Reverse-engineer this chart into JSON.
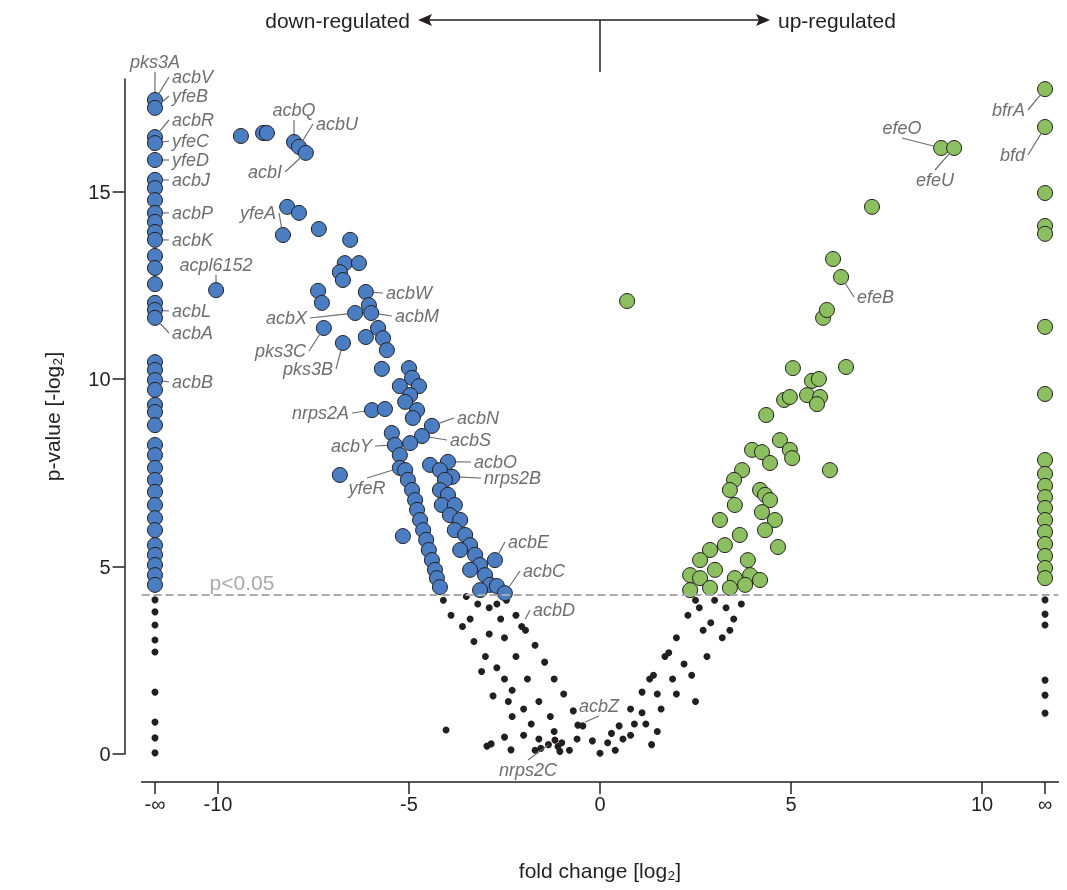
{
  "chart_data": {
    "type": "scatter",
    "xlabel": "fold change [log₂]",
    "ylabel": "p-value [-log₂]",
    "xlim": [
      -12,
      12
    ],
    "xticks": [
      {
        "value": -11.65,
        "label": "-∞"
      },
      -10,
      -5,
      0,
      5,
      10,
      {
        "value": 11.65,
        "label": "∞"
      }
    ],
    "ylim": [
      0,
      18
    ],
    "yticks": [
      0,
      5,
      10,
      15
    ],
    "grid": false,
    "marker": "circle",
    "series": [
      {
        "color": "#4a7dc1",
        "x": [
          -11.65,
          -11.65,
          -11.65,
          -11.65,
          -11.65,
          -11.65,
          -11.65,
          -11.65,
          -11.65,
          -11.65,
          -11.65,
          -11.65,
          -11.65,
          -11.65,
          -11.65,
          -11.65,
          -11.65,
          -11.65,
          -11.65,
          -11.65,
          -11.65,
          -11.65,
          -11.65,
          -11.65,
          -11.65,
          -11.65,
          -11.65,
          -11.65,
          -11.65,
          -11.65,
          -11.65,
          -11.65,
          -11.65,
          -11.65,
          -11.65,
          -11.65,
          -11.65,
          -11.65,
          -9.4,
          -8.82,
          -8.72,
          -8.01,
          -7.88,
          -7.7,
          -8.19,
          -7.88,
          -8.3,
          -7.36,
          -6.54,
          -10.05,
          -6.68,
          -6.31,
          -6.81,
          -6.73,
          -7.38,
          -7.28,
          -6.13,
          -6.05,
          -6.41,
          -5.99,
          -7.23,
          -6.73,
          -6.13,
          -5.81,
          -5.68,
          -5.58,
          -5.71,
          -5.0,
          -4.92,
          -5.24,
          -4.74,
          -4.97,
          -5.1,
          -5.97,
          -5.63,
          -4.79,
          -4.9,
          -4.4,
          -4.66,
          -5.45,
          -5.37,
          -4.97,
          -5.24,
          -6.81,
          -5.24,
          -3.98,
          -3.87,
          -5.16,
          -5.1,
          -5.03,
          -4.92,
          -4.84,
          -4.79,
          -4.71,
          -4.63,
          -4.55,
          -4.48,
          -4.4,
          -4.32,
          -4.27,
          -4.19,
          -4.45,
          -4.19,
          -4.06,
          -4.19,
          -3.98,
          -4.14,
          -3.8,
          -3.93,
          -3.66,
          -3.8,
          -3.53,
          -3.4,
          -3.66,
          -3.27,
          -3.14,
          -3.4,
          -3.01,
          -2.88,
          -3.14,
          -2.7,
          -2.75,
          -2.49
        ],
        "values": [
          17.44,
          17.23,
          16.45,
          16.29,
          15.84,
          15.31,
          15.09,
          14.77,
          14.43,
          14.19,
          13.92,
          13.71,
          13.28,
          12.96,
          12.53,
          12.03,
          11.84,
          11.63,
          10.45,
          10.24,
          9.97,
          9.71,
          9.31,
          9.12,
          8.77,
          8.24,
          7.97,
          7.63,
          7.31,
          6.99,
          6.64,
          6.29,
          5.97,
          5.57,
          5.31,
          5.04,
          4.77,
          4.51,
          16.48,
          16.56,
          16.56,
          16.32,
          16.19,
          16.03,
          14.59,
          14.43,
          13.84,
          14.0,
          13.71,
          12.37,
          13.09,
          13.09,
          12.85,
          12.64,
          12.35,
          12.03,
          12.32,
          11.97,
          11.76,
          11.76,
          11.36,
          10.96,
          11.12,
          11.36,
          11.09,
          10.77,
          10.27,
          10.29,
          10.03,
          9.81,
          9.81,
          9.57,
          9.39,
          9.17,
          9.2,
          9.17,
          8.96,
          8.75,
          8.48,
          8.56,
          8.24,
          8.29,
          7.97,
          7.44,
          7.63,
          7.79,
          7.39,
          5.81,
          7.57,
          7.31,
          7.04,
          6.77,
          6.51,
          6.24,
          5.97,
          5.71,
          5.44,
          5.17,
          4.91,
          4.69,
          4.45,
          7.71,
          7.57,
          7.31,
          7.04,
          6.91,
          6.64,
          6.64,
          6.37,
          6.24,
          5.97,
          5.84,
          5.57,
          5.44,
          5.31,
          5.04,
          4.91,
          4.77,
          4.51,
          4.37,
          4.48,
          5.17,
          4.29
        ]
      },
      {
        "color": "#8cbf5f",
        "x": [
          11.65,
          11.65,
          11.65,
          11.65,
          11.65,
          11.65,
          11.65,
          11.65,
          11.65,
          11.65,
          11.65,
          11.65,
          11.65,
          11.65,
          11.65,
          11.65,
          11.65,
          11.65,
          0.71,
          7.12,
          8.93,
          9.27,
          6.1,
          6.31,
          5.84,
          5.94,
          6.44,
          6.02,
          5.05,
          5.55,
          5.73,
          5.42,
          5.76,
          5.68,
          4.35,
          4.82,
          4.97,
          4.71,
          3.98,
          4.24,
          4.97,
          5.03,
          4.45,
          3.72,
          3.51,
          4.19,
          3.4,
          3.53,
          4.32,
          4.45,
          3.14,
          4.24,
          4.58,
          4.32,
          4.66,
          3.27,
          3.66,
          2.88,
          2.62,
          3.87,
          2.36,
          2.62,
          3.01,
          3.53,
          3.93,
          2.36,
          2.88,
          3.4,
          3.8,
          4.19
        ],
        "values": [
          17.73,
          16.72,
          14.96,
          14.08,
          13.87,
          11.39,
          9.6,
          7.84,
          7.47,
          7.15,
          6.85,
          6.56,
          6.24,
          5.92,
          5.6,
          5.28,
          4.96,
          4.69,
          12.08,
          14.59,
          16.16,
          16.16,
          13.2,
          12.72,
          11.63,
          11.84,
          10.32,
          7.57,
          10.29,
          9.95,
          10.0,
          9.57,
          9.52,
          9.33,
          9.04,
          9.44,
          9.52,
          8.37,
          8.11,
          8.05,
          8.11,
          7.89,
          7.76,
          7.57,
          7.31,
          7.04,
          7.04,
          6.64,
          6.91,
          6.77,
          6.24,
          6.45,
          6.24,
          5.97,
          5.52,
          5.57,
          5.84,
          5.44,
          5.17,
          5.17,
          4.77,
          4.69,
          4.91,
          4.69,
          4.77,
          4.37,
          4.43,
          4.43,
          4.51,
          4.64
        ]
      },
      {
        "color": "#231f20",
        "x": [
          -11.65,
          -11.65,
          -11.65,
          -11.65,
          -11.65,
          -11.65,
          -11.65,
          -11.65,
          -11.65,
          11.65,
          11.65,
          11.65,
          11.65,
          11.65,
          11.65,
          -2.45,
          -2.2,
          -1.95,
          -1.7,
          -1.45,
          -1.2,
          -0.95,
          -0.7,
          -0.45,
          -0.2,
          0,
          -4.1,
          -3.9,
          -3.6,
          -3.3,
          -3.4,
          -3.0,
          -2.7,
          -2.9,
          -2.5,
          -2.3,
          -2.4,
          -2.0,
          -2.3,
          -1.8,
          -2.0,
          -1.6,
          -1.35,
          -2.5,
          -3.1,
          -2.8,
          -3.2,
          -2.9,
          -2.6,
          -2.7,
          -3.5,
          -1.0,
          -0.8,
          -1.2,
          -1.6,
          -1.9,
          -2.2,
          -2.5,
          -1.3,
          -0.6,
          -1.55,
          -1.7,
          -1.1,
          -1.05,
          -2.05,
          -0.58,
          -1.18,
          -4.03,
          -2.96,
          -2.85,
          -2.33,
          0.2,
          0.5,
          0.8,
          1.1,
          1.4,
          1.7,
          2.0,
          2.3,
          2.5,
          0.8,
          1.2,
          1.6,
          2.0,
          2.4,
          2.8,
          3.2,
          3.5,
          3.7,
          3.3,
          2.9,
          2.6,
          3.0,
          2.2,
          1.9,
          1.5,
          1.1,
          0.6,
          1.5,
          1.35,
          2.5,
          0.9,
          2.7,
          1.3,
          1.8,
          3.4,
          0.4,
          0.3
        ],
        "values": [
          4.11,
          3.79,
          3.44,
          3.04,
          2.72,
          1.65,
          0.85,
          0.43,
          0.03,
          4.11,
          3.73,
          3.44,
          1.97,
          1.57,
          1.09,
          4.1,
          3.7,
          3.3,
          2.9,
          2.45,
          2.0,
          1.6,
          1.15,
          0.75,
          0.35,
          0.02,
          4.1,
          3.7,
          3.4,
          3.0,
          3.6,
          2.6,
          2.3,
          3.2,
          2.0,
          1.7,
          1.4,
          1.2,
          1.0,
          0.8,
          0.5,
          0.4,
          0.25,
          0.45,
          2.2,
          1.55,
          4.0,
          3.9,
          3.6,
          4.0,
          4.2,
          0.3,
          0.1,
          0.6,
          1.4,
          2.0,
          2.6,
          3.1,
          1.0,
          0.4,
          0.15,
          0.1,
          0.2,
          0.07,
          3.4,
          0.77,
          0.37,
          0.64,
          0.21,
          0.27,
          0.11,
          0.3,
          0.75,
          1.2,
          1.65,
          2.1,
          2.6,
          3.1,
          3.7,
          4.1,
          0.5,
          0.8,
          1.2,
          1.6,
          2.1,
          2.6,
          3.1,
          3.6,
          4.0,
          3.9,
          3.5,
          3.9,
          4.1,
          2.4,
          2.0,
          1.6,
          1.1,
          0.4,
          0.6,
          0.25,
          1.4,
          0.8,
          3.3,
          2.0,
          2.7,
          3.3,
          0.1,
          0.55
        ]
      }
    ],
    "ref_lines": [
      {
        "axis": "y",
        "value": 4.25,
        "label": "p<0.05",
        "color": "#aaaaaa",
        "line_style": "dashed"
      }
    ],
    "annotations": [
      {
        "text": "pks3A",
        "x": -11.65,
        "y": 17.44
      },
      {
        "text": "acbV",
        "x": -11.65,
        "y": 17.44
      },
      {
        "text": "yfeB",
        "x": -11.65,
        "y": 17.23
      },
      {
        "text": "acbR",
        "x": -11.65,
        "y": 16.45
      },
      {
        "text": "yfeC",
        "x": -11.65,
        "y": 16.29
      },
      {
        "text": "yfeD",
        "x": -11.65,
        "y": 15.84
      },
      {
        "text": "acbJ",
        "x": -11.65,
        "y": 15.31
      },
      {
        "text": "acbP",
        "x": -11.65,
        "y": 14.43
      },
      {
        "text": "acbK",
        "x": -11.65,
        "y": 13.71
      },
      {
        "text": "acpl6152",
        "x": -10.05,
        "y": 12.37
      },
      {
        "text": "acbL",
        "x": -11.65,
        "y": 11.84
      },
      {
        "text": "acbA",
        "x": -11.65,
        "y": 11.63
      },
      {
        "text": "acbB",
        "x": -11.65,
        "y": 9.97
      },
      {
        "text": "acbQ",
        "x": -8.01,
        "y": 16.32
      },
      {
        "text": "acbU",
        "x": -7.88,
        "y": 16.19
      },
      {
        "text": "acbI",
        "x": -7.7,
        "y": 16.03
      },
      {
        "text": "yfeA",
        "x": -8.3,
        "y": 13.84
      },
      {
        "text": "acbW",
        "x": -6.13,
        "y": 12.32
      },
      {
        "text": "acbX",
        "x": -6.41,
        "y": 11.76
      },
      {
        "text": "acbM",
        "x": -5.99,
        "y": 11.76
      },
      {
        "text": "pks3C",
        "x": -7.23,
        "y": 11.36
      },
      {
        "text": "pks3B",
        "x": -6.73,
        "y": 10.96
      },
      {
        "text": "nrps2A",
        "x": -5.97,
        "y": 9.17
      },
      {
        "text": "acbN",
        "x": -4.4,
        "y": 8.75
      },
      {
        "text": "acbS",
        "x": -4.66,
        "y": 8.48
      },
      {
        "text": "acbY",
        "x": -5.37,
        "y": 8.24
      },
      {
        "text": "acbO",
        "x": -3.98,
        "y": 7.79
      },
      {
        "text": "nrps2B",
        "x": -3.87,
        "y": 7.39
      },
      {
        "text": "yfeR",
        "x": -5.24,
        "y": 7.63
      },
      {
        "text": "acbE",
        "x": -2.75,
        "y": 5.17
      },
      {
        "text": "acbC",
        "x": -2.49,
        "y": 4.29
      },
      {
        "text": "acbD",
        "x": -2.05,
        "y": 3.4
      },
      {
        "text": "acbZ",
        "x": -0.58,
        "y": 0.77
      },
      {
        "text": "nrps2C",
        "x": -1.18,
        "y": 0.37
      },
      {
        "text": "efeO",
        "x": 8.93,
        "y": 16.16
      },
      {
        "text": "efeU",
        "x": 9.27,
        "y": 16.16
      },
      {
        "text": "efeB",
        "x": 6.31,
        "y": 12.72
      },
      {
        "text": "bfrA",
        "x": 11.65,
        "y": 17.73
      },
      {
        "text": "bfd",
        "x": 11.65,
        "y": 16.72
      },
      "down-regulated",
      "up-regulated"
    ]
  }
}
